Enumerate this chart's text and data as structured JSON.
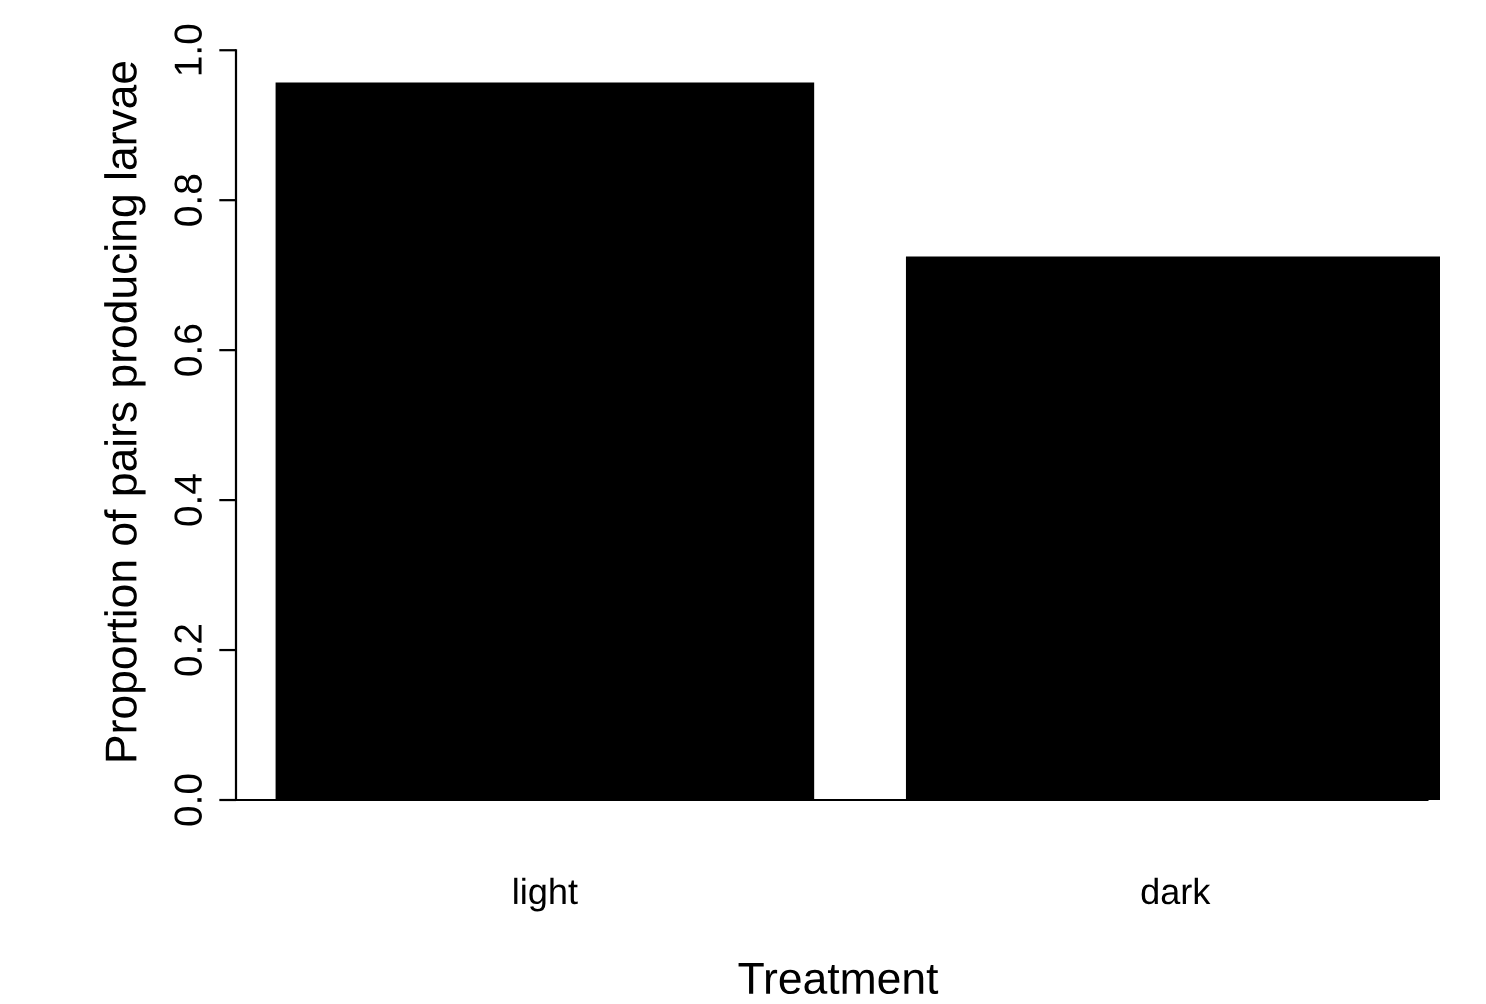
{
  "chart_data": {
    "type": "bar",
    "xlabel": "Treatment",
    "ylabel": "Proportion of pairs producing larvae",
    "categories": [
      "light",
      "dark"
    ],
    "values": [
      0.955,
      0.723
    ],
    "color": "#000000",
    "ylim": [
      0,
      1
    ],
    "yticks": [
      {
        "value": 0,
        "label": "0.0"
      },
      {
        "value": 0.2,
        "label": "0.2"
      },
      {
        "value": 0.4,
        "label": "0.4"
      },
      {
        "value": 0.6,
        "label": "0.6"
      },
      {
        "value": 0.8,
        "label": "0.8"
      },
      {
        "value": 1,
        "label": "1.0"
      }
    ],
    "grid": false,
    "legend": false
  }
}
